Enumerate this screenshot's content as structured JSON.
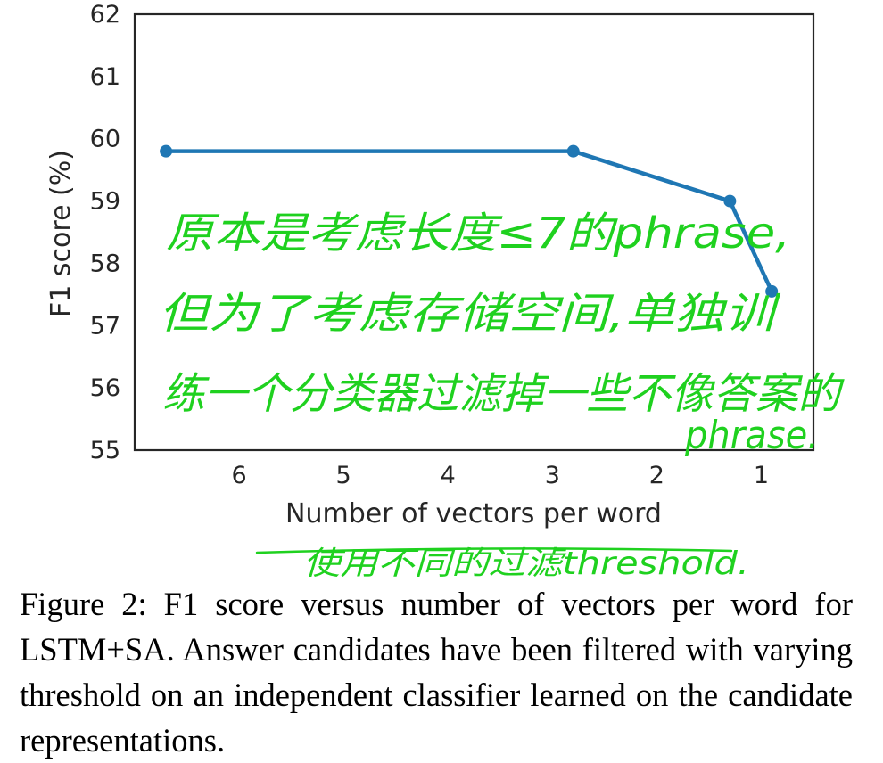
{
  "chart_data": {
    "type": "line",
    "title": "",
    "xlabel": "Number of vectors per word",
    "ylabel": "F1 score (%)",
    "x_tick_labels": [
      "6",
      "5",
      "4",
      "3",
      "2",
      "1"
    ],
    "x_tick_values": [
      6,
      5,
      4,
      3,
      2,
      1
    ],
    "xlim": [
      7.0,
      0.5
    ],
    "y_tick_labels": [
      "55",
      "56",
      "57",
      "58",
      "59",
      "60",
      "61",
      "62"
    ],
    "y_tick_values": [
      55,
      56,
      57,
      58,
      59,
      60,
      61,
      62
    ],
    "ylim": [
      55,
      62
    ],
    "series": [
      {
        "name": "LSTM+SA",
        "x": [
          6.7,
          2.8,
          1.3,
          0.9
        ],
        "y": [
          59.8,
          59.8,
          59.0,
          57.55
        ],
        "color": "#1f77b4"
      }
    ],
    "grid": false,
    "annotations": {
      "handwritten_line1": "原本是考虑长度≤7的phrase,",
      "handwritten_line2": "但为了考虑存储空间,单独训",
      "handwritten_line3": "练一个分类器过滤掉一些不像答案的",
      "handwritten_line4": "phrase.",
      "handwritten_xlabel_note": "使用不同的过滤threshold."
    }
  },
  "caption": "Figure 2: F1 score versus number of vectors per word for LSTM+SA. Answer candidates have been filtered with varying threshold on an independent classifier learned on the candidate representations.",
  "colors": {
    "annotation": "#1fd11f",
    "line": "#1f77b4"
  }
}
